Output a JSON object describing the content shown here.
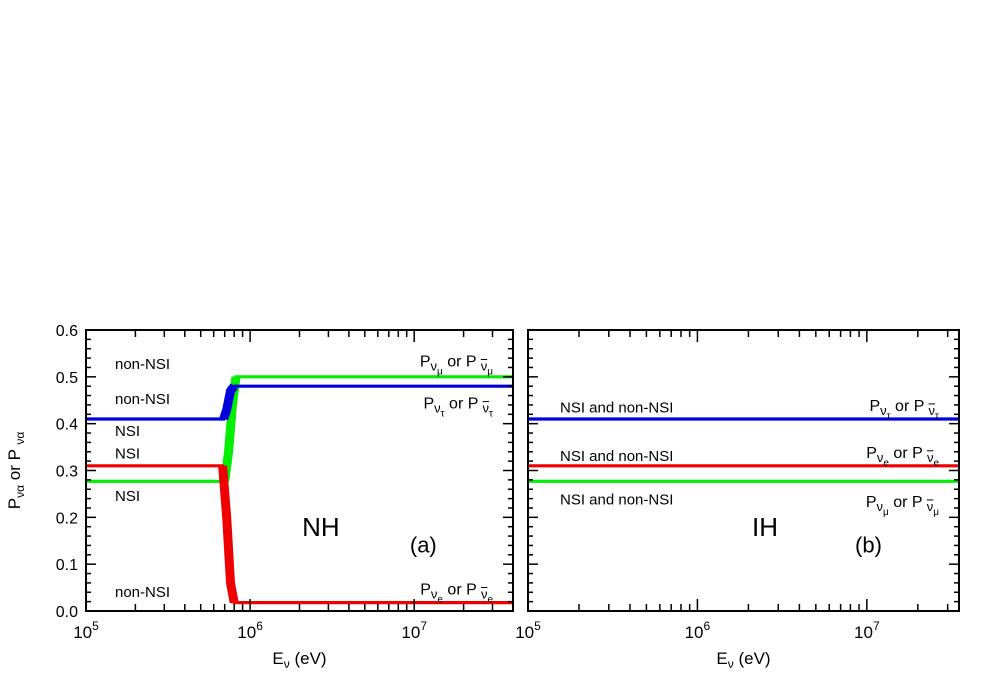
{
  "chart_data": [
    {
      "type": "line",
      "panel": "(a)",
      "hierarchy_label": "NH",
      "xlabel": "E",
      "xlabel_sub": "ν",
      "xlabel_unit": "(eV)",
      "ylabel": "P",
      "ylabel_sub": "να",
      "ylabel_or": "or P",
      "ylabel_bar_sub": "να",
      "x_scale": "log",
      "xlim": [
        100000,
        40000000
      ],
      "ylim": [
        0.0,
        0.6
      ],
      "yticks": [
        "0.0",
        "0.1",
        "0.2",
        "0.3",
        "0.4",
        "0.5",
        "0.6"
      ],
      "xticks": [
        {
          "base": "10",
          "exp": "5"
        },
        {
          "base": "10",
          "exp": "6"
        },
        {
          "base": "10",
          "exp": "7"
        }
      ],
      "series": [
        {
          "flavor": "μ",
          "color": "#00ee00",
          "x": [
            100000,
            700000,
            740000,
            780000,
            820000,
            40000000
          ],
          "y": [
            0.277,
            0.277,
            0.34,
            0.44,
            0.5,
            0.5
          ]
        },
        {
          "flavor": "τ",
          "color": "#0000dd",
          "x": [
            100000,
            690000,
            720000,
            760000,
            800000,
            40000000
          ],
          "y": [
            0.41,
            0.41,
            0.43,
            0.47,
            0.48,
            0.48
          ]
        },
        {
          "flavor": "e",
          "color": "#ee0000",
          "x": [
            100000,
            680000,
            720000,
            760000,
            800000,
            40000000
          ],
          "y": [
            0.31,
            0.31,
            0.2,
            0.06,
            0.018,
            0.018
          ]
        }
      ],
      "annotations": {
        "left": [
          {
            "text": "non-NSI",
            "y": 0.53
          },
          {
            "text": "non-NSI",
            "y": 0.455
          },
          {
            "text": "NSI",
            "y": 0.387
          },
          {
            "text": "NSI",
            "y": 0.338
          },
          {
            "text": "NSI",
            "y": 0.248
          },
          {
            "text": "non-NSI",
            "y": 0.043
          }
        ],
        "right": [
          {
            "flavor": "μ",
            "y": 0.535
          },
          {
            "flavor": "τ",
            "y": 0.445
          },
          {
            "flavor": "e",
            "y": 0.048
          }
        ]
      }
    },
    {
      "type": "line",
      "panel": "(b)",
      "hierarchy_label": "IH",
      "xlabel": "E",
      "xlabel_sub": "ν",
      "xlabel_unit": "(eV)",
      "x_scale": "log",
      "xlim": [
        100000,
        35000000
      ],
      "ylim": [
        0.0,
        0.6
      ],
      "xticks": [
        {
          "base": "10",
          "exp": "5"
        },
        {
          "base": "10",
          "exp": "6"
        },
        {
          "base": "10",
          "exp": "7"
        }
      ],
      "series": [
        {
          "flavor": "τ",
          "color": "#0000dd",
          "x": [
            100000,
            35000000
          ],
          "y": [
            0.41,
            0.41
          ]
        },
        {
          "flavor": "e",
          "color": "#ee0000",
          "x": [
            100000,
            35000000
          ],
          "y": [
            0.31,
            0.31
          ]
        },
        {
          "flavor": "μ",
          "color": "#00ee00",
          "x": [
            100000,
            35000000
          ],
          "y": [
            0.277,
            0.277
          ]
        }
      ],
      "annotations": {
        "left": [
          {
            "text": "NSI and non-NSI",
            "y": 0.437
          },
          {
            "text": "NSI and non-NSI",
            "y": 0.333
          },
          {
            "text": "NSI and non-NSI",
            "y": 0.24
          }
        ],
        "right": [
          {
            "flavor": "τ",
            "y": 0.44
          },
          {
            "flavor": "e",
            "y": 0.34
          },
          {
            "flavor": "μ",
            "y": 0.235
          }
        ]
      }
    }
  ]
}
